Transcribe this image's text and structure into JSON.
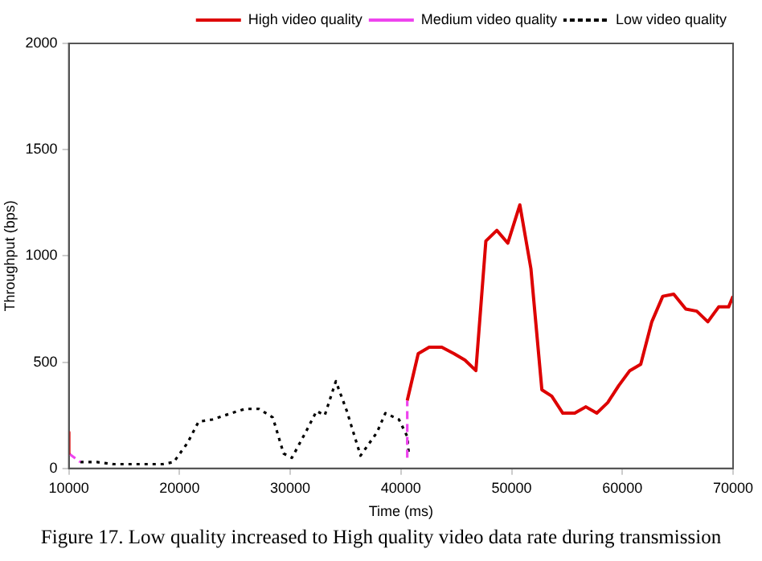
{
  "chart_data": {
    "type": "line",
    "xlabel": "Time (ms)",
    "ylabel": "Throughput (bps)",
    "xlim": [
      10000,
      70000
    ],
    "xticks": [
      10000,
      20000,
      30000,
      40000,
      50000,
      60000,
      70000
    ],
    "ylim": [
      0,
      2000
    ],
    "yticks": [
      0,
      500,
      1000,
      1500,
      2000
    ],
    "grid": false,
    "legend": "top right",
    "marker": "none",
    "annotations": [
      "Figure 17. Low quality increased to High quality video data rate during transmission"
    ],
    "series": [
      {
        "name": "High video quality",
        "color": "#dd0000",
        "line_style": "solid",
        "x": [
          10000,
          10000,
          25000,
          40570,
          41560,
          42550,
          43690,
          44790,
          45780,
          46770,
          47670,
          48660,
          49650,
          50740,
          51740,
          52730,
          53620,
          54620,
          55700,
          56700,
          57690,
          58680,
          59680,
          60670,
          61660,
          62660,
          63650,
          64640,
          65730,
          66720,
          67720,
          68700,
          69600,
          70000
        ],
        "values": [
          170,
          70,
          null,
          320,
          540,
          570,
          570,
          540,
          510,
          460,
          1070,
          1120,
          1060,
          1240,
          940,
          370,
          340,
          260,
          260,
          290,
          260,
          310,
          390,
          460,
          490,
          690,
          810,
          820,
          750,
          740,
          690,
          760,
          760,
          810
        ]
      },
      {
        "name": "Medium video quality",
        "color": "#ee44ee",
        "line_style": "dashed",
        "x": [
          10000,
          11040,
          25000,
          40570,
          40570
        ],
        "values": [
          70,
          30,
          null,
          50,
          320
        ]
      },
      {
        "name": "Low video quality",
        "color": "#000000",
        "line_style": "dotted",
        "x": [
          11040,
          12530,
          14020,
          15510,
          17000,
          18490,
          19480,
          20720,
          21720,
          22950,
          24690,
          25930,
          27170,
          28420,
          29400,
          30150,
          31390,
          32380,
          33120,
          34120,
          35110,
          36350,
          37840,
          38590,
          39820,
          40570,
          40720
        ],
        "values": [
          30,
          30,
          20,
          20,
          20,
          20,
          30,
          120,
          220,
          230,
          260,
          280,
          280,
          240,
          70,
          50,
          170,
          270,
          250,
          410,
          270,
          60,
          170,
          260,
          230,
          150,
          60
        ]
      }
    ]
  }
}
